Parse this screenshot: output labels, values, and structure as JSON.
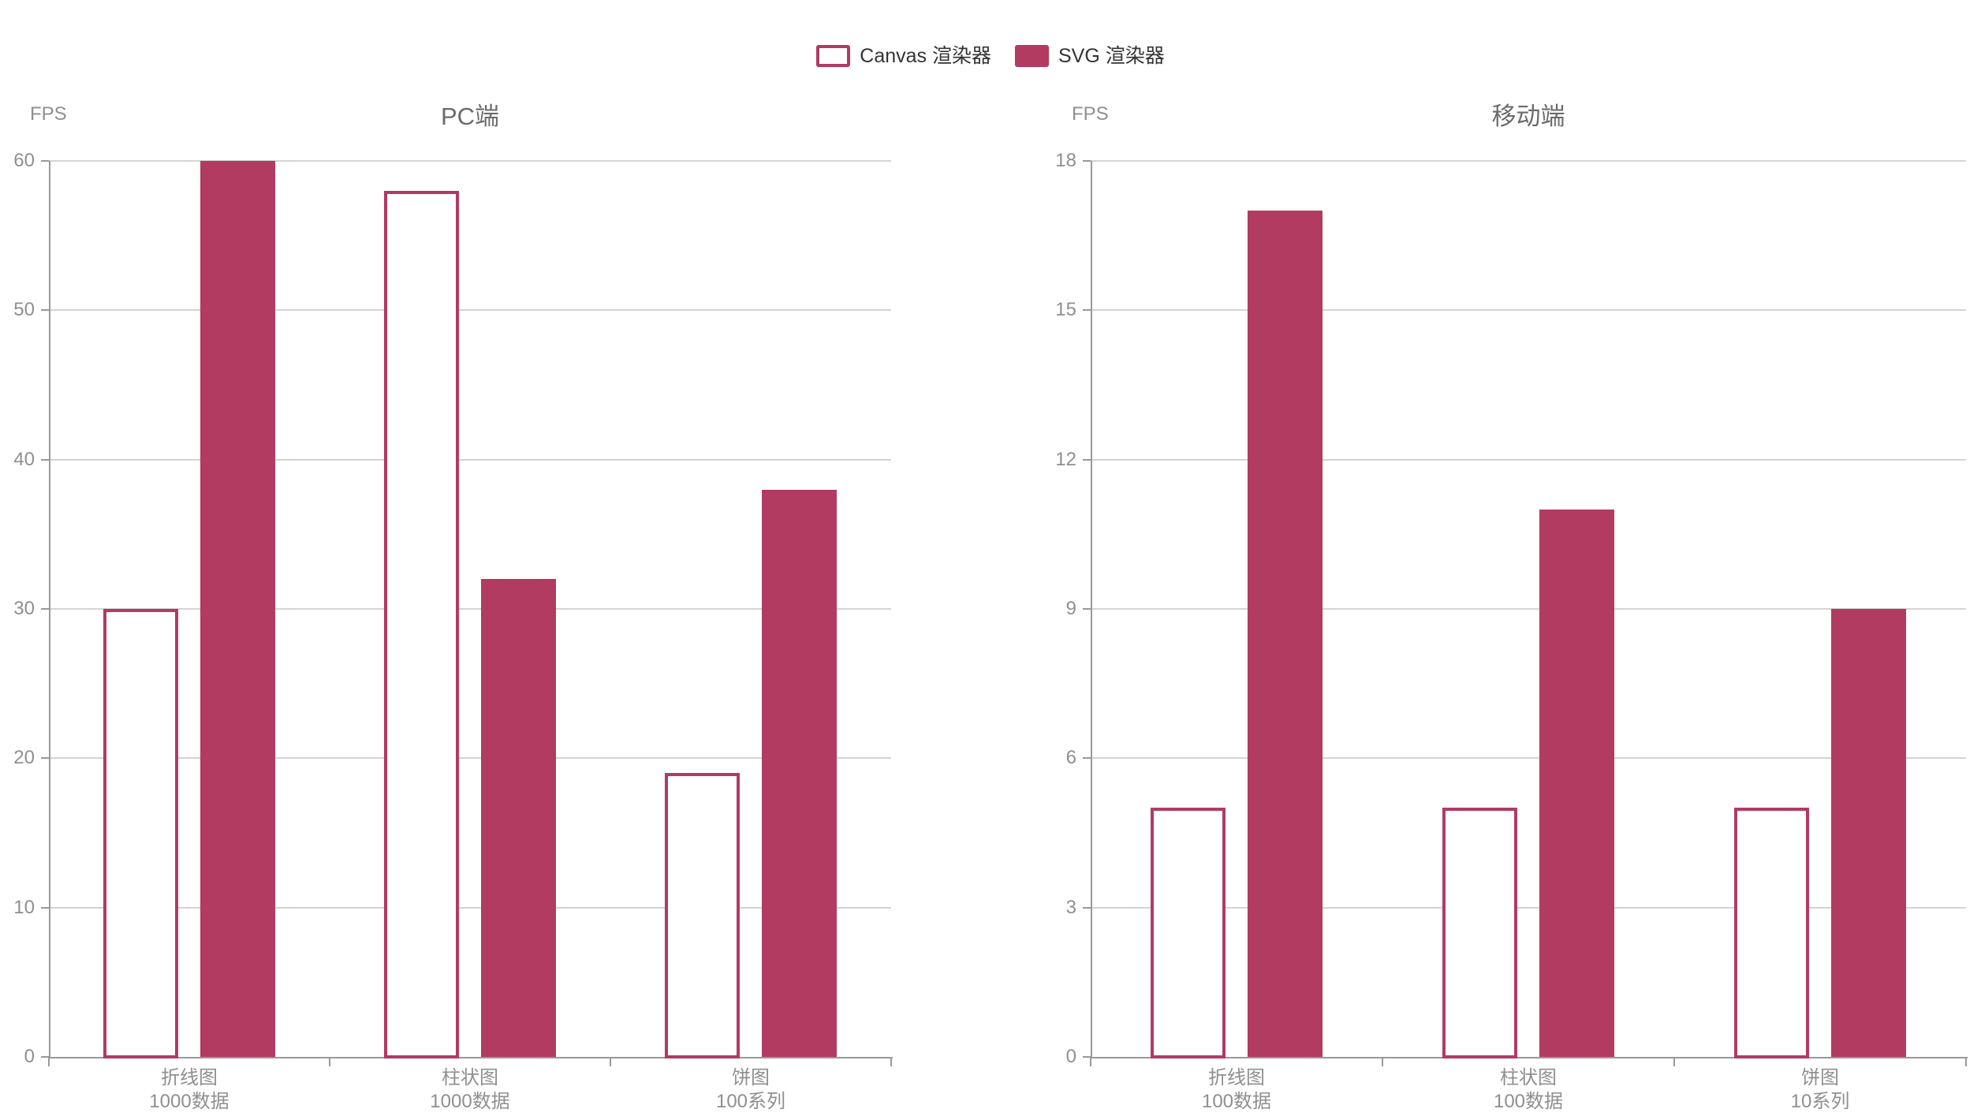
{
  "legend": {
    "items": [
      {
        "label": "Canvas 渲染器",
        "swatch": "hollow"
      },
      {
        "label": "SVG 渲染器",
        "swatch": "solid"
      }
    ]
  },
  "colors": {
    "series": "#b13b61",
    "axis_line": "#999999",
    "grid_line": "#d4d4d4",
    "tick_label": "#8f8f8f",
    "title": "#6b6b6b",
    "legend_text": "#333333"
  },
  "chart_data": [
    {
      "type": "bar",
      "title": "PC端",
      "ylabel": "FPS",
      "categories": [
        "折线图\n1000数据",
        "柱状图\n1000数据",
        "饼图\n100系列"
      ],
      "series": [
        {
          "name": "Canvas 渲染器",
          "style": "hollow",
          "values": [
            30,
            58,
            19
          ]
        },
        {
          "name": "SVG 渲染器",
          "style": "solid",
          "values": [
            60,
            32,
            38
          ]
        }
      ],
      "ylim": [
        0,
        60
      ],
      "yticks": [
        0,
        10,
        20,
        30,
        40,
        50,
        60
      ],
      "grid": true,
      "legend_position": "top"
    },
    {
      "type": "bar",
      "title": "移动端",
      "ylabel": "FPS",
      "categories": [
        "折线图\n100数据",
        "柱状图\n100数据",
        "饼图\n10系列"
      ],
      "series": [
        {
          "name": "Canvas 渲染器",
          "style": "hollow",
          "values": [
            5,
            5,
            5
          ]
        },
        {
          "name": "SVG 渲染器",
          "style": "solid",
          "values": [
            17,
            11,
            9
          ]
        }
      ],
      "ylim": [
        0,
        18
      ],
      "yticks": [
        0,
        3,
        6,
        9,
        12,
        15,
        18
      ],
      "grid": true,
      "legend_position": "top"
    }
  ]
}
